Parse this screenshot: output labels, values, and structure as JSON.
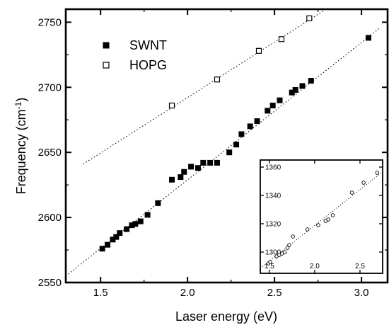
{
  "chart_data": [
    {
      "type": "scatter",
      "title": "",
      "xlabel": "Laser energy (eV)",
      "ylabel": "Frequency (cm",
      "ylabel_sup": "-1",
      "ylabel_suffix": ")",
      "xlim": [
        1.3,
        3.15
      ],
      "ylim": [
        2550,
        2760
      ],
      "xticks": [
        1.5,
        2.0,
        2.5,
        3.0
      ],
      "xtick_labels": [
        "1.5",
        "2.0",
        "2.5",
        "3.0"
      ],
      "yticks": [
        2550,
        2600,
        2650,
        2700,
        2750
      ],
      "ytick_labels": [
        "2550",
        "2600",
        "2650",
        "2700",
        "2750"
      ],
      "legend_position": "top-left",
      "series": [
        {
          "name": "SWNT",
          "marker": "filled-square",
          "x": [
            1.51,
            1.54,
            1.57,
            1.59,
            1.61,
            1.65,
            1.68,
            1.7,
            1.73,
            1.77,
            1.83,
            1.91,
            1.96,
            1.98,
            2.02,
            2.06,
            2.09,
            2.13,
            2.17,
            2.24,
            2.28,
            2.31,
            2.36,
            2.4,
            2.46,
            2.49,
            2.53,
            2.6,
            2.62,
            2.66,
            2.71,
            3.04
          ],
          "y": [
            2576,
            2579,
            2583,
            2585,
            2588,
            2591,
            2594,
            2595,
            2597,
            2602,
            2611,
            2629,
            2631,
            2635,
            2639,
            2638,
            2642,
            2642,
            2642,
            2650,
            2656,
            2664,
            2670,
            2674,
            2682,
            2686,
            2690,
            2696,
            2698,
            2701,
            2705,
            2738
          ]
        },
        {
          "name": "HOPG",
          "marker": "open-square",
          "x": [
            1.91,
            2.17,
            2.41,
            2.54,
            2.7
          ],
          "y": [
            2686,
            2706,
            2728,
            2737,
            2753
          ]
        }
      ],
      "fit_lines": [
        {
          "x": [
            1.3,
            3.1
          ],
          "y": [
            2555,
            2745
          ]
        },
        {
          "x": [
            1.4,
            2.82
          ],
          "y": [
            2641,
            2762
          ]
        }
      ]
    },
    {
      "type": "scatter",
      "title": "",
      "xlabel": "",
      "ylabel": "",
      "xlim": [
        1.4,
        2.75
      ],
      "ylim": [
        1285,
        1365
      ],
      "xticks": [
        1.5,
        2.0,
        2.5
      ],
      "xtick_labels": [
        "1.5",
        "2.0",
        "2.5"
      ],
      "yticks": [
        1300,
        1320,
        1340,
        1360
      ],
      "ytick_labels": [
        "1300",
        "1320",
        "1340",
        "1360"
      ],
      "series": [
        {
          "marker": "open-circle",
          "x": [
            1.49,
            1.51,
            1.58,
            1.61,
            1.64,
            1.67,
            1.7,
            1.72,
            1.76,
            1.92,
            2.04,
            2.12,
            2.15,
            2.2,
            2.41,
            2.54,
            2.69
          ],
          "y": [
            1292,
            1293,
            1297,
            1298,
            1299,
            1300,
            1303,
            1305,
            1311,
            1316,
            1319,
            1322,
            1323,
            1326,
            1342,
            1349,
            1356
          ]
        }
      ],
      "fit_lines": [
        {
          "x": [
            1.4,
            2.75
          ],
          "y": [
            1288.5,
            1356.7
          ]
        }
      ]
    }
  ]
}
